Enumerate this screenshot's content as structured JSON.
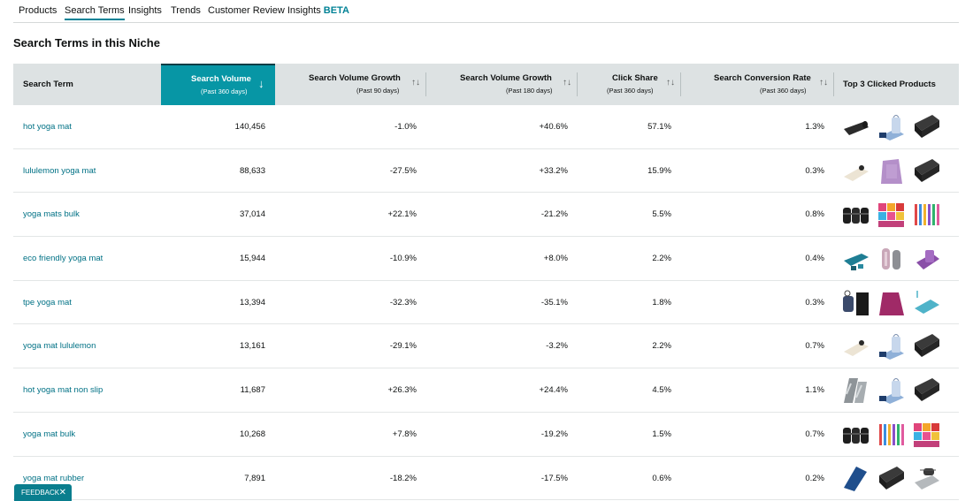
{
  "tabs": [
    {
      "label": "Products",
      "active": false
    },
    {
      "label": "Search Terms",
      "active": true
    },
    {
      "label": "Insights",
      "active": false
    },
    {
      "label": "Trends",
      "active": false
    },
    {
      "label": "Customer Review Insights",
      "badge": "BETA",
      "active": false
    }
  ],
  "section_title": "Search Terms in this Niche",
  "columns": [
    {
      "label": "Search Term",
      "sub": ""
    },
    {
      "label": "Search Volume",
      "sub": "(Past 360 days)",
      "sort_icon": "↓"
    },
    {
      "label": "Search Volume Growth",
      "sub": "(Past 90 days)",
      "sort_icon": "↑↓"
    },
    {
      "label": "Search Volume Growth",
      "sub": "(Past 180 days)",
      "sort_icon": "↑↓"
    },
    {
      "label": "Click Share",
      "sub": "(Past 360 days)",
      "sort_icon": "↑↓"
    },
    {
      "label": "Search Conversion Rate",
      "sub": "(Past 360 days)",
      "sort_icon": "↑↓"
    },
    {
      "label": "Top 3 Clicked Products",
      "sub": ""
    }
  ],
  "rows": [
    {
      "term": "hot yoga mat",
      "volume": "140,456",
      "growth90": "-1.0%",
      "growth180": "+40.6%",
      "click_share": "57.1%",
      "conversion": "1.3%",
      "thumbs": [
        "black-mat",
        "blue-mat-bag",
        "black-roll"
      ]
    },
    {
      "term": "lululemon yoga mat",
      "volume": "88,633",
      "growth90": "-27.5%",
      "growth180": "+33.2%",
      "click_share": "15.9%",
      "conversion": "0.3%",
      "thumbs": [
        "cream-mat",
        "lilac-mat",
        "black-roll"
      ]
    },
    {
      "term": "yoga mats bulk",
      "volume": "37,014",
      "growth90": "+22.1%",
      "growth180": "-21.2%",
      "click_share": "5.5%",
      "conversion": "0.8%",
      "thumbs": [
        "black-rolls-bulk",
        "colorful-mats",
        "striped-rolls"
      ]
    },
    {
      "term": "eco friendly yoga mat",
      "volume": "15,944",
      "growth90": "-10.9%",
      "growth180": "+8.0%",
      "click_share": "2.2%",
      "conversion": "0.4%",
      "thumbs": [
        "teal-mat-blocks",
        "pink-rolls",
        "purple-mat"
      ]
    },
    {
      "term": "tpe yoga mat",
      "volume": "13,394",
      "growth90": "-32.3%",
      "growth180": "-35.1%",
      "click_share": "1.8%",
      "conversion": "0.3%",
      "thumbs": [
        "mat-bundle",
        "magenta-mat",
        "aqua-mat"
      ]
    },
    {
      "term": "yoga mat lululemon",
      "volume": "13,161",
      "growth90": "-29.1%",
      "growth180": "-3.2%",
      "click_share": "2.2%",
      "conversion": "0.7%",
      "thumbs": [
        "cream-mat",
        "blue-mat-bag",
        "black-roll"
      ]
    },
    {
      "term": "hot yoga mat non slip",
      "volume": "11,687",
      "growth90": "+26.3%",
      "growth180": "+24.4%",
      "click_share": "4.5%",
      "conversion": "1.1%",
      "thumbs": [
        "grey-pattern-mat",
        "blue-mat-bag",
        "black-roll"
      ]
    },
    {
      "term": "yoga mat bulk",
      "volume": "10,268",
      "growth90": "+7.8%",
      "growth180": "-19.2%",
      "click_share": "1.5%",
      "conversion": "0.7%",
      "thumbs": [
        "black-rolls-bulk",
        "striped-rolls",
        "colorful-mats"
      ]
    },
    {
      "term": "yoga mat rubber",
      "volume": "7,891",
      "growth90": "-18.2%",
      "growth180": "-17.5%",
      "click_share": "0.6%",
      "conversion": "0.2%",
      "thumbs": [
        "navy-mat",
        "black-roll",
        "grey-mat-strap"
      ]
    }
  ],
  "feedback": {
    "label": "FEEDBACK",
    "close": "✕"
  },
  "colors": {
    "accent": "#0796a5",
    "link": "#007185",
    "header_bg": "#dde2e3"
  }
}
